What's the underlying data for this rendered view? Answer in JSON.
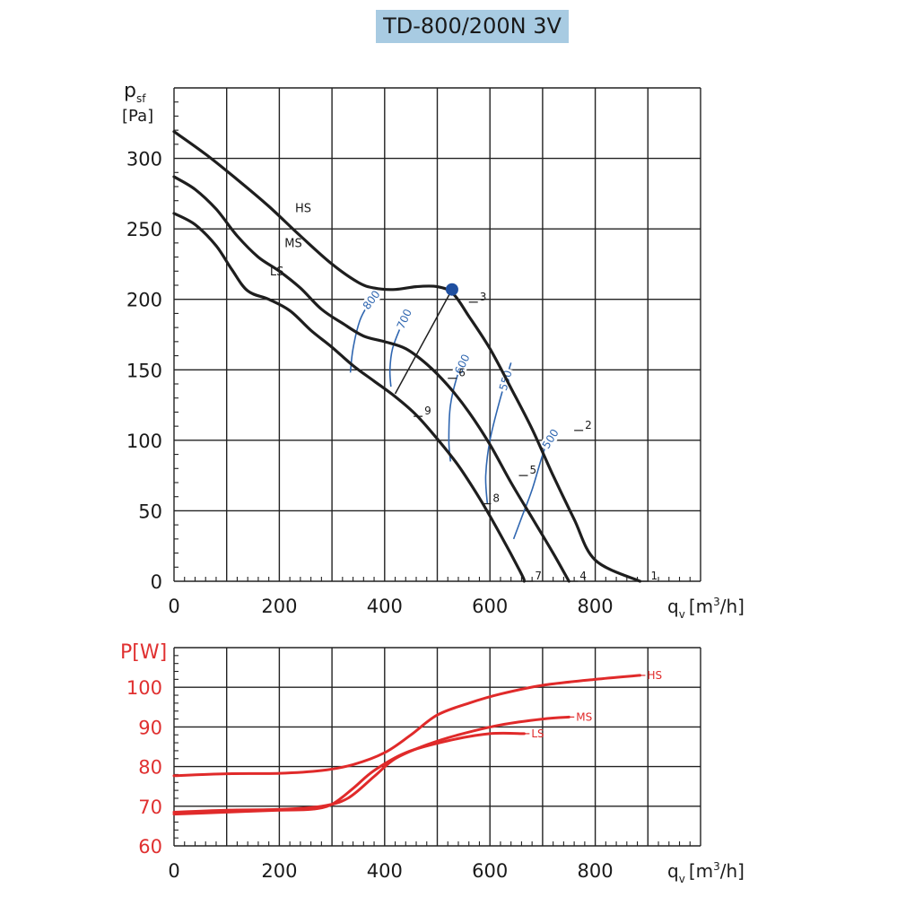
{
  "title": "TD-800/200N 3V",
  "colors": {
    "title_bg": "#a8cbe2",
    "curve": "#1e1e1e",
    "rpm": "#2f66b0",
    "power": "#e02a2a",
    "operating_point": "#1f4fa0"
  },
  "chart_data": [
    {
      "type": "line",
      "title": "TD-800/200N 3V",
      "ylabel_main": "p",
      "ylabel_sub": "sf",
      "ylabel_unit": "[Pa]",
      "xlabel_main": "q",
      "xlabel_sub": "v",
      "xlabel_unit": "[m",
      "xlabel_sup": "3",
      "xlabel_unit_end": "/h]",
      "xlim": [
        0,
        1000
      ],
      "ylim": [
        0,
        350
      ],
      "x_ticks": [
        "0",
        "200",
        "400",
        "600",
        "800"
      ],
      "x_tick_values": [
        0,
        200,
        400,
        600,
        800
      ],
      "y_ticks": [
        "0",
        "50",
        "100",
        "150",
        "200",
        "250",
        "300"
      ],
      "y_tick_values": [
        0,
        50,
        100,
        150,
        200,
        250,
        300
      ],
      "series": [
        {
          "name": "HS",
          "label_at": [
            230,
            262
          ],
          "points": [
            [
              0,
              319
            ],
            [
              60,
              303
            ],
            [
              120,
              285
            ],
            [
              180,
              266
            ],
            [
              240,
              245
            ],
            [
              300,
              225
            ],
            [
              350,
              212
            ],
            [
              380,
              208
            ],
            [
              420,
              207
            ],
            [
              460,
              209
            ],
            [
              500,
              209
            ],
            [
              530,
              204
            ],
            [
              560,
              188
            ],
            [
              600,
              165
            ],
            [
              640,
              137
            ],
            [
              680,
              108
            ],
            [
              720,
              75
            ],
            [
              760,
              44
            ],
            [
              800,
              15
            ],
            [
              885,
              0
            ]
          ]
        },
        {
          "name": "MS",
          "label_at": [
            210,
            237
          ],
          "points": [
            [
              0,
              287
            ],
            [
              40,
              278
            ],
            [
              80,
              264
            ],
            [
              120,
              245
            ],
            [
              160,
              230
            ],
            [
              200,
              220
            ],
            [
              240,
              208
            ],
            [
              280,
              193
            ],
            [
              320,
              183
            ],
            [
              360,
              174
            ],
            [
              400,
              170
            ],
            [
              440,
              165
            ],
            [
              480,
              154
            ],
            [
              520,
              139
            ],
            [
              560,
              120
            ],
            [
              600,
              97
            ],
            [
              640,
              70
            ],
            [
              680,
              45
            ],
            [
              720,
              20
            ],
            [
              750,
              0
            ]
          ]
        },
        {
          "name": "LS",
          "label_at": [
            182,
            217
          ],
          "points": [
            [
              0,
              261
            ],
            [
              40,
              253
            ],
            [
              80,
              238
            ],
            [
              110,
              221
            ],
            [
              140,
              206
            ],
            [
              180,
              200
            ],
            [
              220,
              192
            ],
            [
              260,
              178
            ],
            [
              300,
              166
            ],
            [
              340,
              153
            ],
            [
              380,
              142
            ],
            [
              420,
              131
            ],
            [
              460,
              118
            ],
            [
              500,
              101
            ],
            [
              540,
              82
            ],
            [
              580,
              59
            ],
            [
              620,
              33
            ],
            [
              660,
              5
            ],
            [
              665,
              0
            ]
          ]
        }
      ],
      "rpm_lines": [
        {
          "label": "800",
          "points": [
            [
              335,
              148
            ],
            [
              340,
              165
            ],
            [
              353,
              185
            ],
            [
              370,
              197
            ],
            [
              380,
              202
            ]
          ]
        },
        {
          "label": "700",
          "points": [
            [
              412,
              138
            ],
            [
              410,
              150
            ],
            [
              415,
              165
            ],
            [
              430,
              180
            ],
            [
              445,
              192
            ]
          ]
        },
        {
          "label": "600",
          "points": [
            [
              525,
              85
            ],
            [
              522,
              100
            ],
            [
              525,
              125
            ],
            [
              540,
              148
            ],
            [
              555,
              160
            ]
          ]
        },
        {
          "label": "550",
          "points": [
            [
              595,
              55
            ],
            [
              592,
              75
            ],
            [
              600,
              100
            ],
            [
              620,
              130
            ],
            [
              640,
              155
            ]
          ]
        },
        {
          "label": "500",
          "points": [
            [
              645,
              30
            ],
            [
              660,
              45
            ],
            [
              680,
              65
            ],
            [
              705,
              95
            ],
            [
              725,
              107
            ]
          ]
        }
      ],
      "system_line": {
        "from": [
          420,
          133
        ],
        "to": [
          528,
          207
        ]
      },
      "operating_point": [
        528,
        207
      ],
      "point_labels": [
        {
          "id": "1",
          "at": [
            885,
            0
          ]
        },
        {
          "id": "2",
          "at": [
            760,
            107
          ]
        },
        {
          "id": "3",
          "at": [
            560,
            198
          ]
        },
        {
          "id": "4",
          "at": [
            750,
            0
          ]
        },
        {
          "id": "5",
          "at": [
            655,
            75
          ]
        },
        {
          "id": "6",
          "at": [
            520,
            144
          ]
        },
        {
          "id": "7",
          "at": [
            665,
            0
          ]
        },
        {
          "id": "8",
          "at": [
            585,
            55
          ]
        },
        {
          "id": "9",
          "at": [
            455,
            117
          ]
        }
      ]
    },
    {
      "type": "line",
      "ylabel": "P[W]",
      "xlabel_main": "q",
      "xlabel_sub": "v",
      "xlabel_unit": "[m",
      "xlabel_sup": "3",
      "xlabel_unit_end": "/h]",
      "xlim": [
        0,
        1000
      ],
      "ylim": [
        60,
        110
      ],
      "x_ticks": [
        "0",
        "200",
        "400",
        "600",
        "800"
      ],
      "x_tick_values": [
        0,
        200,
        400,
        600,
        800
      ],
      "y_ticks": [
        "60",
        "70",
        "80",
        "90",
        "100"
      ],
      "y_tick_values": [
        60,
        70,
        80,
        90,
        100
      ],
      "series": [
        {
          "name": "HS",
          "points": [
            [
              0,
              77.7
            ],
            [
              100,
              78.2
            ],
            [
              200,
              78.3
            ],
            [
              280,
              79
            ],
            [
              340,
              80.5
            ],
            [
              400,
              83.5
            ],
            [
              450,
              88
            ],
            [
              500,
              93
            ],
            [
              560,
              96
            ],
            [
              620,
              98.3
            ],
            [
              700,
              100.5
            ],
            [
              800,
              102
            ],
            [
              885,
              103
            ]
          ]
        },
        {
          "name": "MS",
          "points": [
            [
              0,
              68.5
            ],
            [
              100,
              69
            ],
            [
              200,
              69.2
            ],
            [
              280,
              70
            ],
            [
              330,
              72
            ],
            [
              380,
              77.5
            ],
            [
              420,
              82
            ],
            [
              480,
              85.5
            ],
            [
              540,
              88
            ],
            [
              620,
              90.5
            ],
            [
              700,
              92
            ],
            [
              750,
              92.5
            ]
          ]
        },
        {
          "name": "LS",
          "points": [
            [
              0,
              68
            ],
            [
              100,
              68.5
            ],
            [
              200,
              69
            ],
            [
              260,
              69.2
            ],
            [
              300,
              70.5
            ],
            [
              340,
              74.5
            ],
            [
              380,
              79
            ],
            [
              440,
              83.5
            ],
            [
              520,
              86.5
            ],
            [
              600,
              88.3
            ],
            [
              665,
              88.3
            ]
          ]
        }
      ]
    }
  ]
}
